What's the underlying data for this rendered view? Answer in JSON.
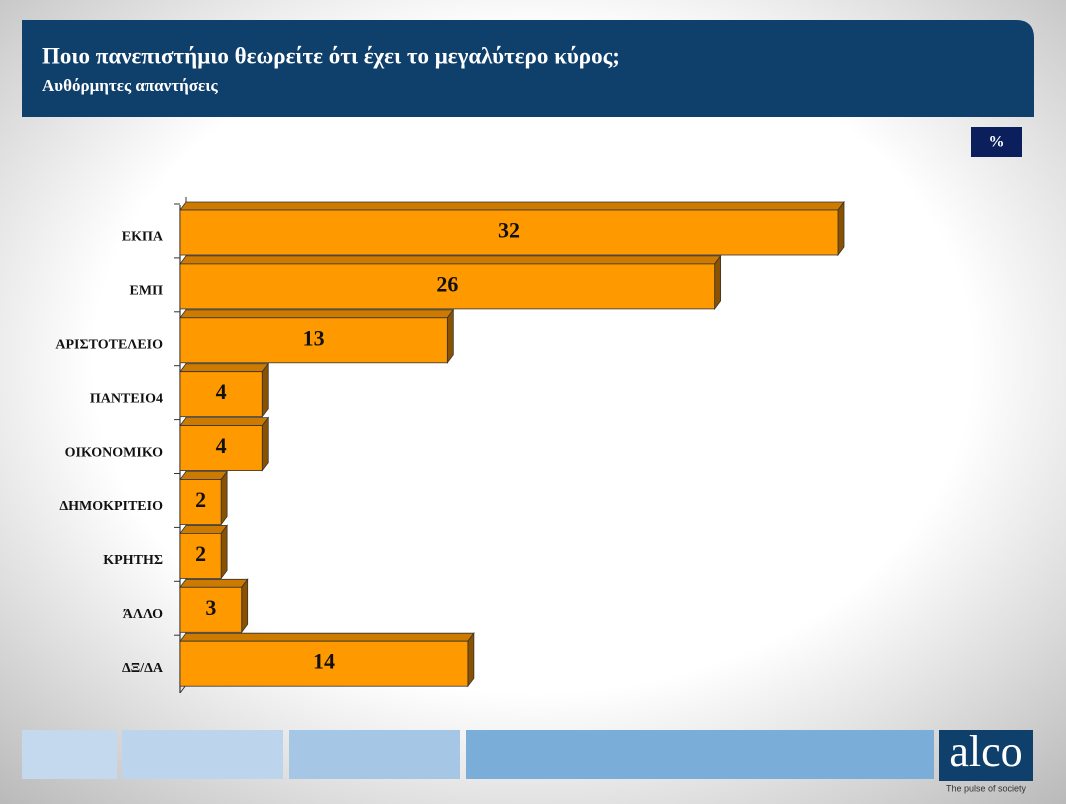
{
  "chart_data": {
    "type": "bar",
    "orientation": "horizontal",
    "title": "Ποιο πανεπιστήμιο θεωρείτε ότι έχει το μεγαλύτερο κύρος;",
    "subtitle": "Αυθόρμητες απαντήσεις",
    "unit": "%",
    "categories": [
      "ΕΚΠΑ",
      "ΕΜΠ",
      "ΑΡΙΣΤΟΤΕΛΕΙΟ",
      "ΠΑΝΤΕΙΟ4",
      "ΟΙΚΟΝΟΜΙΚΟ",
      "ΔΗΜΟΚΡΙΤΕΙΟ",
      "ΚΡΗΤΗΣ",
      "ΆΛΛΟ",
      "ΔΞ/ΔΑ"
    ],
    "values": [
      32,
      26,
      13,
      4,
      4,
      2,
      2,
      3,
      14
    ],
    "color": "#ff9900"
  },
  "brand": {
    "logo": "alco",
    "tagline": "The pulse of society"
  }
}
